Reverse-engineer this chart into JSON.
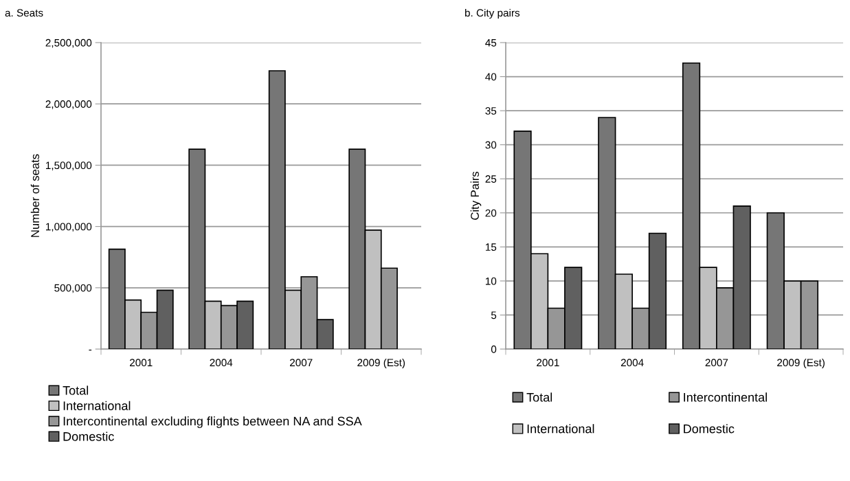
{
  "chart_data": [
    {
      "type": "bar",
      "title": "a. Seats",
      "ylabel": "Number of seats",
      "categories": [
        "2001",
        "2004",
        "2007",
        "2009 (Est)"
      ],
      "series": [
        {
          "name": "Total",
          "color": "#767676",
          "values": [
            815000,
            1630000,
            2270000,
            1630000
          ]
        },
        {
          "name": "International",
          "color": "#c0c0c0",
          "values": [
            400000,
            390000,
            480000,
            970000
          ]
        },
        {
          "name": "Intercontinental excluding flights between NA and SSA",
          "color": "#969696",
          "values": [
            300000,
            355000,
            590000,
            660000
          ]
        },
        {
          "name": "Domestic",
          "color": "#606060",
          "values": [
            480000,
            390000,
            240000,
            null
          ]
        }
      ],
      "ylim": [
        0,
        2500000
      ],
      "yticks": [
        {
          "value": 0,
          "label": "-"
        },
        {
          "value": 500000,
          "label": "500,000"
        },
        {
          "value": 1000000,
          "label": "1,000,000"
        },
        {
          "value": 1500000,
          "label": "1,500,000"
        },
        {
          "value": 2000000,
          "label": "2,000,000"
        },
        {
          "value": 2500000,
          "label": "2,500,000"
        }
      ],
      "grid": "y",
      "legend": "bottom"
    },
    {
      "type": "bar",
      "title": "b. City pairs",
      "ylabel": "City Pairs",
      "categories": [
        "2001",
        "2004",
        "2007",
        "2009 (Est)"
      ],
      "series": [
        {
          "name": "Total",
          "color": "#767676",
          "values": [
            32,
            34,
            42,
            20
          ]
        },
        {
          "name": "International",
          "color": "#c0c0c0",
          "values": [
            14,
            11,
            12,
            10
          ]
        },
        {
          "name": "Intercontinental",
          "color": "#969696",
          "values": [
            6,
            6,
            9,
            10
          ]
        },
        {
          "name": "Domestic",
          "color": "#606060",
          "values": [
            12,
            17,
            21,
            null
          ]
        }
      ],
      "ylim": [
        0,
        45
      ],
      "yticks": [
        0,
        5,
        10,
        15,
        20,
        25,
        30,
        35,
        40,
        45
      ],
      "grid": "y",
      "legend": "bottom"
    }
  ]
}
